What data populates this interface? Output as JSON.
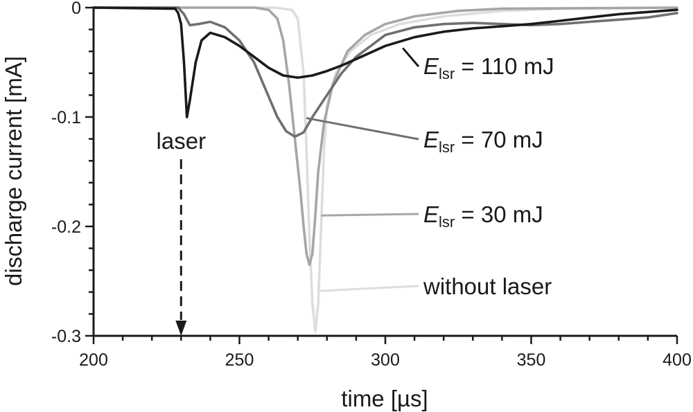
{
  "chart_data": {
    "type": "line",
    "title": "",
    "xlabel": "time [µs]",
    "ylabel": "discharge current [mA]",
    "xlim": [
      200,
      400
    ],
    "ylim": [
      -0.3,
      0
    ],
    "x_ticks": [
      200,
      250,
      300,
      350,
      400
    ],
    "y_ticks": [
      0,
      -0.1,
      -0.2,
      -0.3
    ],
    "x_tick_labels": [
      "200",
      "250",
      "300",
      "350",
      "400"
    ],
    "y_tick_labels": [
      "0",
      "-0.1",
      "-0.2",
      "-0.3"
    ],
    "grid": false,
    "laser_marker": {
      "label": "laser",
      "x": 230
    },
    "series": [
      {
        "name": "without laser",
        "label_var": "",
        "label_sub": "",
        "label_rest": "without laser",
        "color": "#dddddd",
        "points": [
          [
            200,
            0
          ],
          [
            255,
            0
          ],
          [
            262,
            0
          ],
          [
            268,
            -0.002
          ],
          [
            270,
            -0.01
          ],
          [
            272,
            -0.06
          ],
          [
            273,
            -0.13
          ],
          [
            274,
            -0.21
          ],
          [
            275,
            -0.27
          ],
          [
            276,
            -0.296
          ],
          [
            277,
            -0.27
          ],
          [
            278,
            -0.2
          ],
          [
            279,
            -0.13
          ],
          [
            280,
            -0.09
          ],
          [
            283,
            -0.06
          ],
          [
            288,
            -0.04
          ],
          [
            295,
            -0.025
          ],
          [
            305,
            -0.015
          ],
          [
            320,
            -0.008
          ],
          [
            340,
            -0.003
          ],
          [
            360,
            -0.001
          ],
          [
            400,
            0
          ]
        ]
      },
      {
        "name": "E_lsr = 30 mJ",
        "label_var": "E",
        "label_sub": "lsr",
        "label_rest": " = 30 mJ",
        "color": "#a6a6a6",
        "points": [
          [
            200,
            0
          ],
          [
            255,
            0
          ],
          [
            260,
            -0.002
          ],
          [
            263,
            -0.01
          ],
          [
            265,
            -0.03
          ],
          [
            267,
            -0.07
          ],
          [
            269,
            -0.12
          ],
          [
            271,
            -0.17
          ],
          [
            272,
            -0.2
          ],
          [
            273,
            -0.225
          ],
          [
            274,
            -0.235
          ],
          [
            275,
            -0.225
          ],
          [
            276,
            -0.19
          ],
          [
            277,
            -0.15
          ],
          [
            279,
            -0.105
          ],
          [
            282,
            -0.07
          ],
          [
            287,
            -0.04
          ],
          [
            293,
            -0.025
          ],
          [
            300,
            -0.015
          ],
          [
            310,
            -0.008
          ],
          [
            325,
            -0.003
          ],
          [
            340,
            -0.001
          ],
          [
            400,
            0
          ]
        ]
      },
      {
        "name": "E_lsr = 70 mJ",
        "label_var": "E",
        "label_sub": "lsr",
        "label_rest": " = 70 mJ",
        "color": "#707070",
        "points": [
          [
            200,
            0
          ],
          [
            229,
            0
          ],
          [
            231,
            -0.006
          ],
          [
            233,
            -0.016
          ],
          [
            236,
            -0.015
          ],
          [
            240,
            -0.013
          ],
          [
            245,
            -0.018
          ],
          [
            250,
            -0.03
          ],
          [
            255,
            -0.05
          ],
          [
            259,
            -0.075
          ],
          [
            263,
            -0.1
          ],
          [
            266,
            -0.113
          ],
          [
            269,
            -0.118
          ],
          [
            272,
            -0.114
          ],
          [
            275,
            -0.1
          ],
          [
            280,
            -0.08
          ],
          [
            285,
            -0.06
          ],
          [
            290,
            -0.045
          ],
          [
            295,
            -0.035
          ],
          [
            300,
            -0.025
          ],
          [
            310,
            -0.018
          ],
          [
            320,
            -0.015
          ],
          [
            330,
            -0.014
          ],
          [
            340,
            -0.015
          ],
          [
            350,
            -0.016
          ],
          [
            360,
            -0.015
          ],
          [
            370,
            -0.013
          ],
          [
            380,
            -0.011
          ],
          [
            390,
            -0.009
          ],
          [
            400,
            -0.005
          ]
        ]
      },
      {
        "name": "E_lsr = 110 mJ",
        "label_var": "E",
        "label_sub": "lsr",
        "label_rest": " = 110 mJ",
        "color": "#1a1a1a",
        "points": [
          [
            200,
            0
          ],
          [
            228,
            -0.001
          ],
          [
            229,
            -0.005
          ],
          [
            230,
            -0.015
          ],
          [
            231,
            -0.05
          ],
          [
            232,
            -0.1
          ],
          [
            233,
            -0.085
          ],
          [
            235,
            -0.05
          ],
          [
            237,
            -0.03
          ],
          [
            240,
            -0.023
          ],
          [
            245,
            -0.027
          ],
          [
            250,
            -0.035
          ],
          [
            255,
            -0.045
          ],
          [
            260,
            -0.055
          ],
          [
            265,
            -0.062
          ],
          [
            270,
            -0.064
          ],
          [
            275,
            -0.062
          ],
          [
            280,
            -0.058
          ],
          [
            285,
            -0.053
          ],
          [
            290,
            -0.047
          ],
          [
            300,
            -0.035
          ],
          [
            310,
            -0.027
          ],
          [
            320,
            -0.022
          ],
          [
            330,
            -0.019
          ],
          [
            340,
            -0.017
          ],
          [
            350,
            -0.015
          ],
          [
            360,
            -0.012
          ],
          [
            370,
            -0.009
          ],
          [
            380,
            -0.006
          ],
          [
            390,
            -0.004
          ],
          [
            400,
            -0.002
          ]
        ]
      }
    ]
  }
}
